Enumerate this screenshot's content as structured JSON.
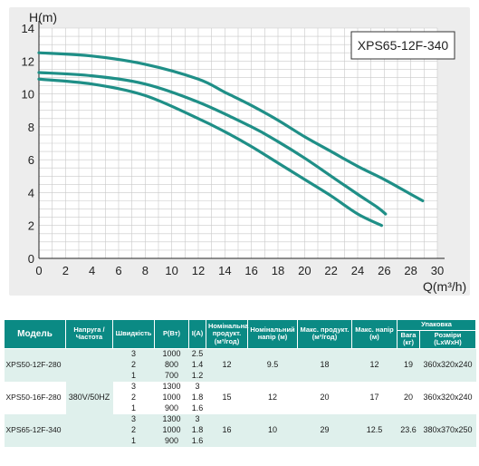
{
  "chart_data": {
    "type": "line",
    "xlabel": "Q(m³/h)",
    "ylabel": "H(m)",
    "xlim": [
      0,
      30
    ],
    "ylim": [
      0,
      14
    ],
    "xticks": [
      0,
      2,
      4,
      6,
      8,
      10,
      12,
      14,
      16,
      18,
      20,
      22,
      24,
      26,
      28,
      30
    ],
    "yticks": [
      0,
      2,
      4,
      6,
      8,
      10,
      12,
      14
    ],
    "grid": true,
    "line_color": "#1f8f87",
    "legend_box": "XPS65-12F-340",
    "series": [
      {
        "x": [
          0,
          4,
          8,
          12,
          14,
          16,
          18,
          20,
          22,
          24,
          25.8
        ],
        "y": [
          10.9,
          10.6,
          9.9,
          8.5,
          7.7,
          6.8,
          5.8,
          4.8,
          3.8,
          2.7,
          2.0
        ]
      },
      {
        "x": [
          0,
          4,
          8,
          12,
          16,
          18,
          20,
          22,
          24,
          25.5,
          26.1
        ],
        "y": [
          11.3,
          11.1,
          10.6,
          9.5,
          8.0,
          7.1,
          6.1,
          5.0,
          3.9,
          3.1,
          2.7
        ]
      },
      {
        "x": [
          0,
          4,
          8,
          12,
          14,
          16,
          18,
          20,
          22,
          24,
          26,
          28,
          28.9
        ],
        "y": [
          12.5,
          12.3,
          11.8,
          10.9,
          10.1,
          9.3,
          8.4,
          7.4,
          6.5,
          5.6,
          4.8,
          3.9,
          3.5
        ]
      }
    ]
  },
  "table": {
    "headers": {
      "model": "Модель",
      "voltage": "Напруга /Частота",
      "speed": "Швидкість",
      "power": "P(Вт)",
      "current": "I(A)",
      "nom_flow": "Номінальна продукт. (м³/год)",
      "nom_head": "Номінальний напір (м)",
      "max_flow": "Макс. продукт. (м³/год)",
      "max_head": "Макс. напір (м)",
      "packing": "Упаковка",
      "weight": "Вага (кг)",
      "size": "Розміри (LxWxH)"
    },
    "voltage_value": "380V/50HZ",
    "models": [
      {
        "name": "XPS50-12F-280",
        "nom_flow": "12",
        "nom_head": "9.5",
        "max_flow": "18",
        "max_head": "12",
        "weight": "19",
        "size": "360x320x240",
        "rows": [
          {
            "speed": "3",
            "power": "1000",
            "current": "2.5"
          },
          {
            "speed": "2",
            "power": "800",
            "current": "1.4"
          },
          {
            "speed": "1",
            "power": "700",
            "current": "1.2"
          }
        ]
      },
      {
        "name": "XPS50-16F-280",
        "nom_flow": "15",
        "nom_head": "12",
        "max_flow": "20",
        "max_head": "17",
        "weight": "20",
        "size": "360x320x240",
        "rows": [
          {
            "speed": "3",
            "power": "1300",
            "current": "3"
          },
          {
            "speed": "2",
            "power": "1000",
            "current": "1.8"
          },
          {
            "speed": "1",
            "power": "900",
            "current": "1.6"
          }
        ]
      },
      {
        "name": "XPS65-12F-340",
        "nom_flow": "16",
        "nom_head": "10",
        "max_flow": "29",
        "max_head": "12.5",
        "weight": "23.6",
        "size": "380x370x250",
        "rows": [
          {
            "speed": "3",
            "power": "1300",
            "current": "3"
          },
          {
            "speed": "2",
            "power": "1000",
            "current": "1.8"
          },
          {
            "speed": "1",
            "power": "900",
            "current": "1.6"
          }
        ]
      }
    ]
  }
}
